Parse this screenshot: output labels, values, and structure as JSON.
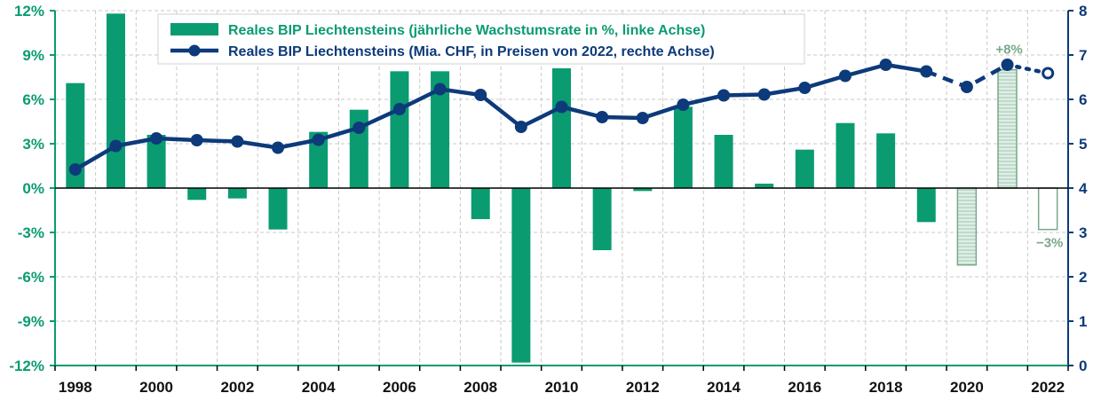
{
  "chart_data": {
    "type": "bar+line",
    "categories": [
      "1998",
      "1999",
      "2000",
      "2001",
      "2002",
      "2003",
      "2004",
      "2005",
      "2006",
      "2007",
      "2008",
      "2009",
      "2010",
      "2011",
      "2012",
      "2013",
      "2014",
      "2015",
      "2016",
      "2017",
      "2018",
      "2019",
      "2020",
      "2021",
      "2022"
    ],
    "x_tick_labels": [
      "1998",
      "2000",
      "2002",
      "2004",
      "2006",
      "2008",
      "2010",
      "2012",
      "2014",
      "2016",
      "2018",
      "2020",
      "2022"
    ],
    "series": [
      {
        "name": "Reales BIP Liechtensteins (jährliche Wachstumsrate in %, linke Achse)",
        "type": "bar",
        "axis": "left",
        "values": [
          7.1,
          11.8,
          3.6,
          -0.8,
          -0.7,
          -2.8,
          3.8,
          5.3,
          7.9,
          7.9,
          -2.1,
          -11.8,
          8.1,
          -4.2,
          -0.2,
          5.5,
          3.6,
          0.3,
          2.6,
          4.4,
          3.7,
          -2.3,
          -5.2,
          8.0,
          -2.8
        ],
        "estimated_from_index": 22,
        "color": "#0a9b71",
        "estimate_color": "#7aa88a"
      },
      {
        "name": "Reales BIP Liechtensteins (Mia. CHF, in Preisen von 2022, rechte Achse)",
        "type": "line",
        "axis": "right",
        "values": [
          4.42,
          4.95,
          5.12,
          5.08,
          5.05,
          4.91,
          5.09,
          5.36,
          5.78,
          6.23,
          6.1,
          5.38,
          5.83,
          5.6,
          5.58,
          5.88,
          6.09,
          6.11,
          6.26,
          6.53,
          6.78,
          6.63,
          6.28,
          6.78,
          6.59
        ],
        "dashed_from_index": 21,
        "dotted_from_index": 23,
        "color": "#0d3a7a"
      }
    ],
    "left_axis": {
      "ylim": [
        -12,
        12
      ],
      "ticks": [
        12,
        9,
        6,
        3,
        0,
        -3,
        -6,
        -9,
        -12
      ],
      "tick_labels": [
        "12%",
        "9%",
        "6%",
        "3%",
        "0%",
        "-3%",
        "-6%",
        "-9%",
        "-12%"
      ]
    },
    "right_axis": {
      "ylim": [
        0,
        8
      ],
      "ticks": [
        8,
        7,
        6,
        5,
        4,
        3,
        2,
        1,
        0
      ],
      "tick_labels": [
        "8",
        "7",
        "6",
        "5",
        "4",
        "3",
        "2",
        "1",
        "0"
      ]
    },
    "annotations": [
      {
        "text": "+8%",
        "category": "2021"
      },
      {
        "text": "−3%",
        "category": "2022"
      }
    ],
    "legend": "top-center",
    "grid": true,
    "colors": {
      "bar": "#0a9b71",
      "bar_estimate": "#7aa88a",
      "line": "#0d3a7a"
    }
  }
}
